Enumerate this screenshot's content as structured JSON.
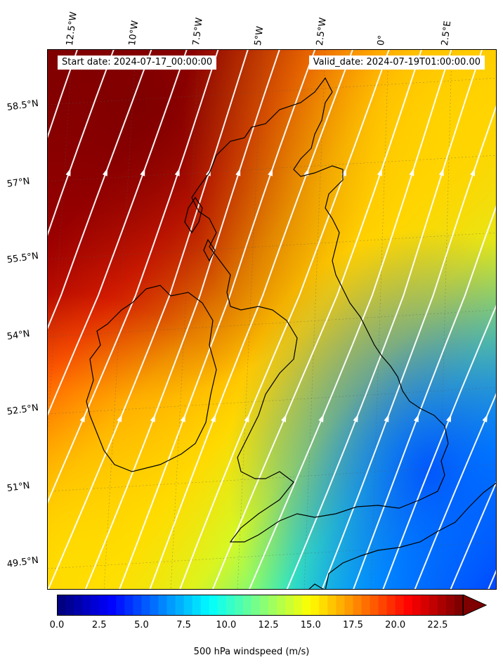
{
  "banner": {
    "start_date": "Start date: 2024-07-17_00:00:00",
    "valid_date": "Valid_date: 2024-07-19T01:00:00.00"
  },
  "axes": {
    "lat_labels": [
      "58.5°N",
      "57°N",
      "55.5°N",
      "54°N",
      "52.5°N",
      "51°N",
      "49.5°N"
    ],
    "lon_labels": [
      "12.5°W",
      "10°W",
      "7.5°W",
      "5°W",
      "2.5°W",
      "0°",
      "2.5°E"
    ]
  },
  "colorbar": {
    "label": "500 hPa windspeed (m/s)",
    "ticks": [
      "0.0",
      "2.5",
      "5.0",
      "7.5",
      "10.0",
      "12.5",
      "15.0",
      "17.5",
      "20.0",
      "22.5"
    ],
    "min": 0,
    "max": 24,
    "extend": "max",
    "colormap": "jet"
  },
  "map": {
    "variable": "500 hPa windspeed",
    "units": "m/s",
    "lat_range": [
      49.0,
      59.5
    ],
    "lon_range": [
      -13.5,
      4.0
    ],
    "overlay": "streamlines",
    "streamline_color": "#ffffff",
    "coastline_color": "#000000",
    "grid": "dotted"
  }
}
